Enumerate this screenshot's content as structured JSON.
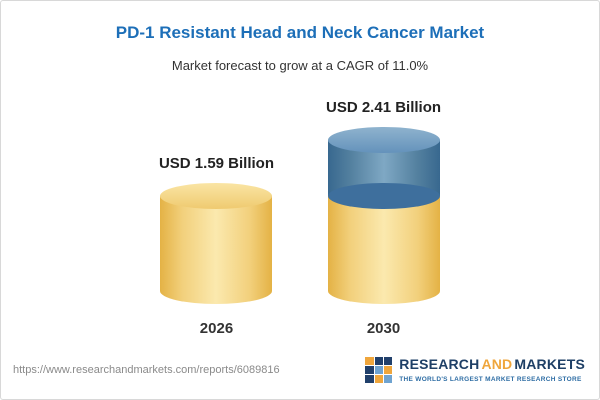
{
  "header": {
    "title": "PD-1 Resistant Head and Neck Cancer Market",
    "subtitle": "Market forecast to grow at a CAGR of 11.0%"
  },
  "chart_data": {
    "type": "bar",
    "subtype": "3d-cylinder-stacked",
    "categories": [
      "2026",
      "2030"
    ],
    "values": [
      1.59,
      2.41
    ],
    "value_labels": [
      "USD 1.59 Billion",
      "USD 2.41 Billion"
    ],
    "unit": "USD Billion",
    "cagr_pct": 11.0,
    "colors": {
      "base_segment": "#f3ce73",
      "growth_segment": "#4e83b2"
    },
    "legend": "none",
    "gridlines": false
  },
  "footer": {
    "url": "https://www.researchandmarkets.com/reports/6089816",
    "logo": {
      "word1": "RESEARCH",
      "word2": "AND",
      "word3": "MARKETS",
      "tagline": "THE WORLD'S LARGEST MARKET RESEARCH STORE"
    }
  }
}
